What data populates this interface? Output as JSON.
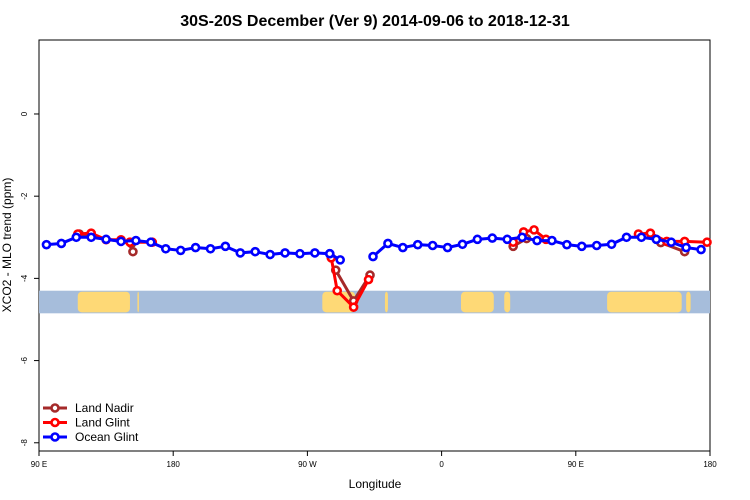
{
  "chart_data": {
    "type": "line",
    "title": "30S-20S December (Ver 9)   2014-09-06 to 2018-12-31",
    "xlabel": "Longitude",
    "ylabel": "XCO2 - MLO trend (ppm)",
    "xlim": [
      90,
      540
    ],
    "ylim": [
      -8.2,
      1.8
    ],
    "xticks": [
      {
        "value": 90,
        "label": "90 E"
      },
      {
        "value": 180,
        "label": "180"
      },
      {
        "value": 270,
        "label": "90 W"
      },
      {
        "value": 360,
        "label": "0"
      },
      {
        "value": 450,
        "label": "90 E"
      },
      {
        "value": 540,
        "label": "180"
      }
    ],
    "yticks": [
      {
        "value": 0,
        "label": "0"
      },
      {
        "value": -2,
        "label": "-2"
      },
      {
        "value": -4,
        "label": "-4"
      },
      {
        "value": -6,
        "label": "-6"
      },
      {
        "value": -8,
        "label": "-8"
      }
    ],
    "legend_position": "bottom-left",
    "grid": false,
    "land_strip": {
      "y_range": [
        -4.85,
        -4.3
      ],
      "ocean_color": "#a6bddb",
      "land_color": "#fed976",
      "land_segments": [
        [
          116,
          151
        ],
        [
          156,
          157
        ],
        [
          280,
          302
        ],
        [
          322,
          324
        ],
        [
          373,
          395
        ],
        [
          402,
          406
        ],
        [
          471,
          521
        ],
        [
          524,
          527
        ]
      ]
    },
    "series": [
      {
        "name": "Land Nadir",
        "color": "#a52a2a",
        "segments": [
          {
            "x": [
              117,
              152,
              153
            ],
            "y": [
              -2.92,
              -3.15,
              -3.35
            ]
          },
          {
            "x": [
              289,
              301,
              312
            ],
            "y": [
              -3.8,
              -4.55,
              -3.92
            ]
          },
          {
            "x": [
              408,
              417
            ],
            "y": [
              -3.22,
              -3.03
            ]
          },
          {
            "x": [
              507,
              523
            ],
            "y": [
              -3.13,
              -3.35
            ]
          }
        ]
      },
      {
        "name": "Land Glint",
        "color": "#ff0000",
        "segments": [
          {
            "x": [
              116,
              125,
              135,
              145,
              151,
              166
            ],
            "y": [
              -2.92,
              -2.9,
              -3.06,
              -3.06,
              -3.12,
              -3.12
            ]
          },
          {
            "x": [
              286,
              290,
              301,
              311
            ],
            "y": [
              -3.5,
              -4.3,
              -4.7,
              -4.03
            ]
          },
          {
            "x": [
              408,
              415,
              422,
              430
            ],
            "y": [
              -3.12,
              -2.87,
              -2.82,
              -3.05
            ]
          },
          {
            "x": [
              492,
              500,
              511,
              523,
              538
            ],
            "y": [
              -2.92,
              -2.9,
              -3.1,
              -3.1,
              -3.12
            ]
          }
        ]
      },
      {
        "name": "Ocean Glint",
        "color": "#0000ff",
        "segments": [
          {
            "x": [
              95,
              105,
              115,
              125,
              135,
              145,
              155,
              165,
              175,
              185,
              195,
              205,
              215,
              225,
              235,
              245,
              255,
              265,
              275,
              285
            ],
            "y": [
              -3.18,
              -3.15,
              -3.0,
              -3.0,
              -3.05,
              -3.1,
              -3.08,
              -3.12,
              -3.28,
              -3.32,
              -3.25,
              -3.28,
              -3.22,
              -3.38,
              -3.35,
              -3.42,
              -3.38,
              -3.4,
              -3.38,
              -3.4
            ]
          },
          {
            "x": [
              285,
              292
            ],
            "y": [
              -3.4,
              -3.55
            ]
          },
          {
            "x": [
              314,
              324,
              334,
              344,
              354,
              364,
              374,
              384,
              394,
              404,
              414,
              424,
              434,
              444,
              454,
              464,
              474,
              484,
              494,
              504,
              514,
              524,
              534
            ],
            "y": [
              -3.47,
              -3.15,
              -3.25,
              -3.18,
              -3.2,
              -3.25,
              -3.17,
              -3.05,
              -3.02,
              -3.05,
              -3.0,
              -3.08,
              -3.08,
              -3.18,
              -3.22,
              -3.2,
              -3.17,
              -3.0,
              -3.0,
              -3.05,
              -3.12,
              -3.25,
              -3.3
            ]
          }
        ]
      }
    ]
  }
}
